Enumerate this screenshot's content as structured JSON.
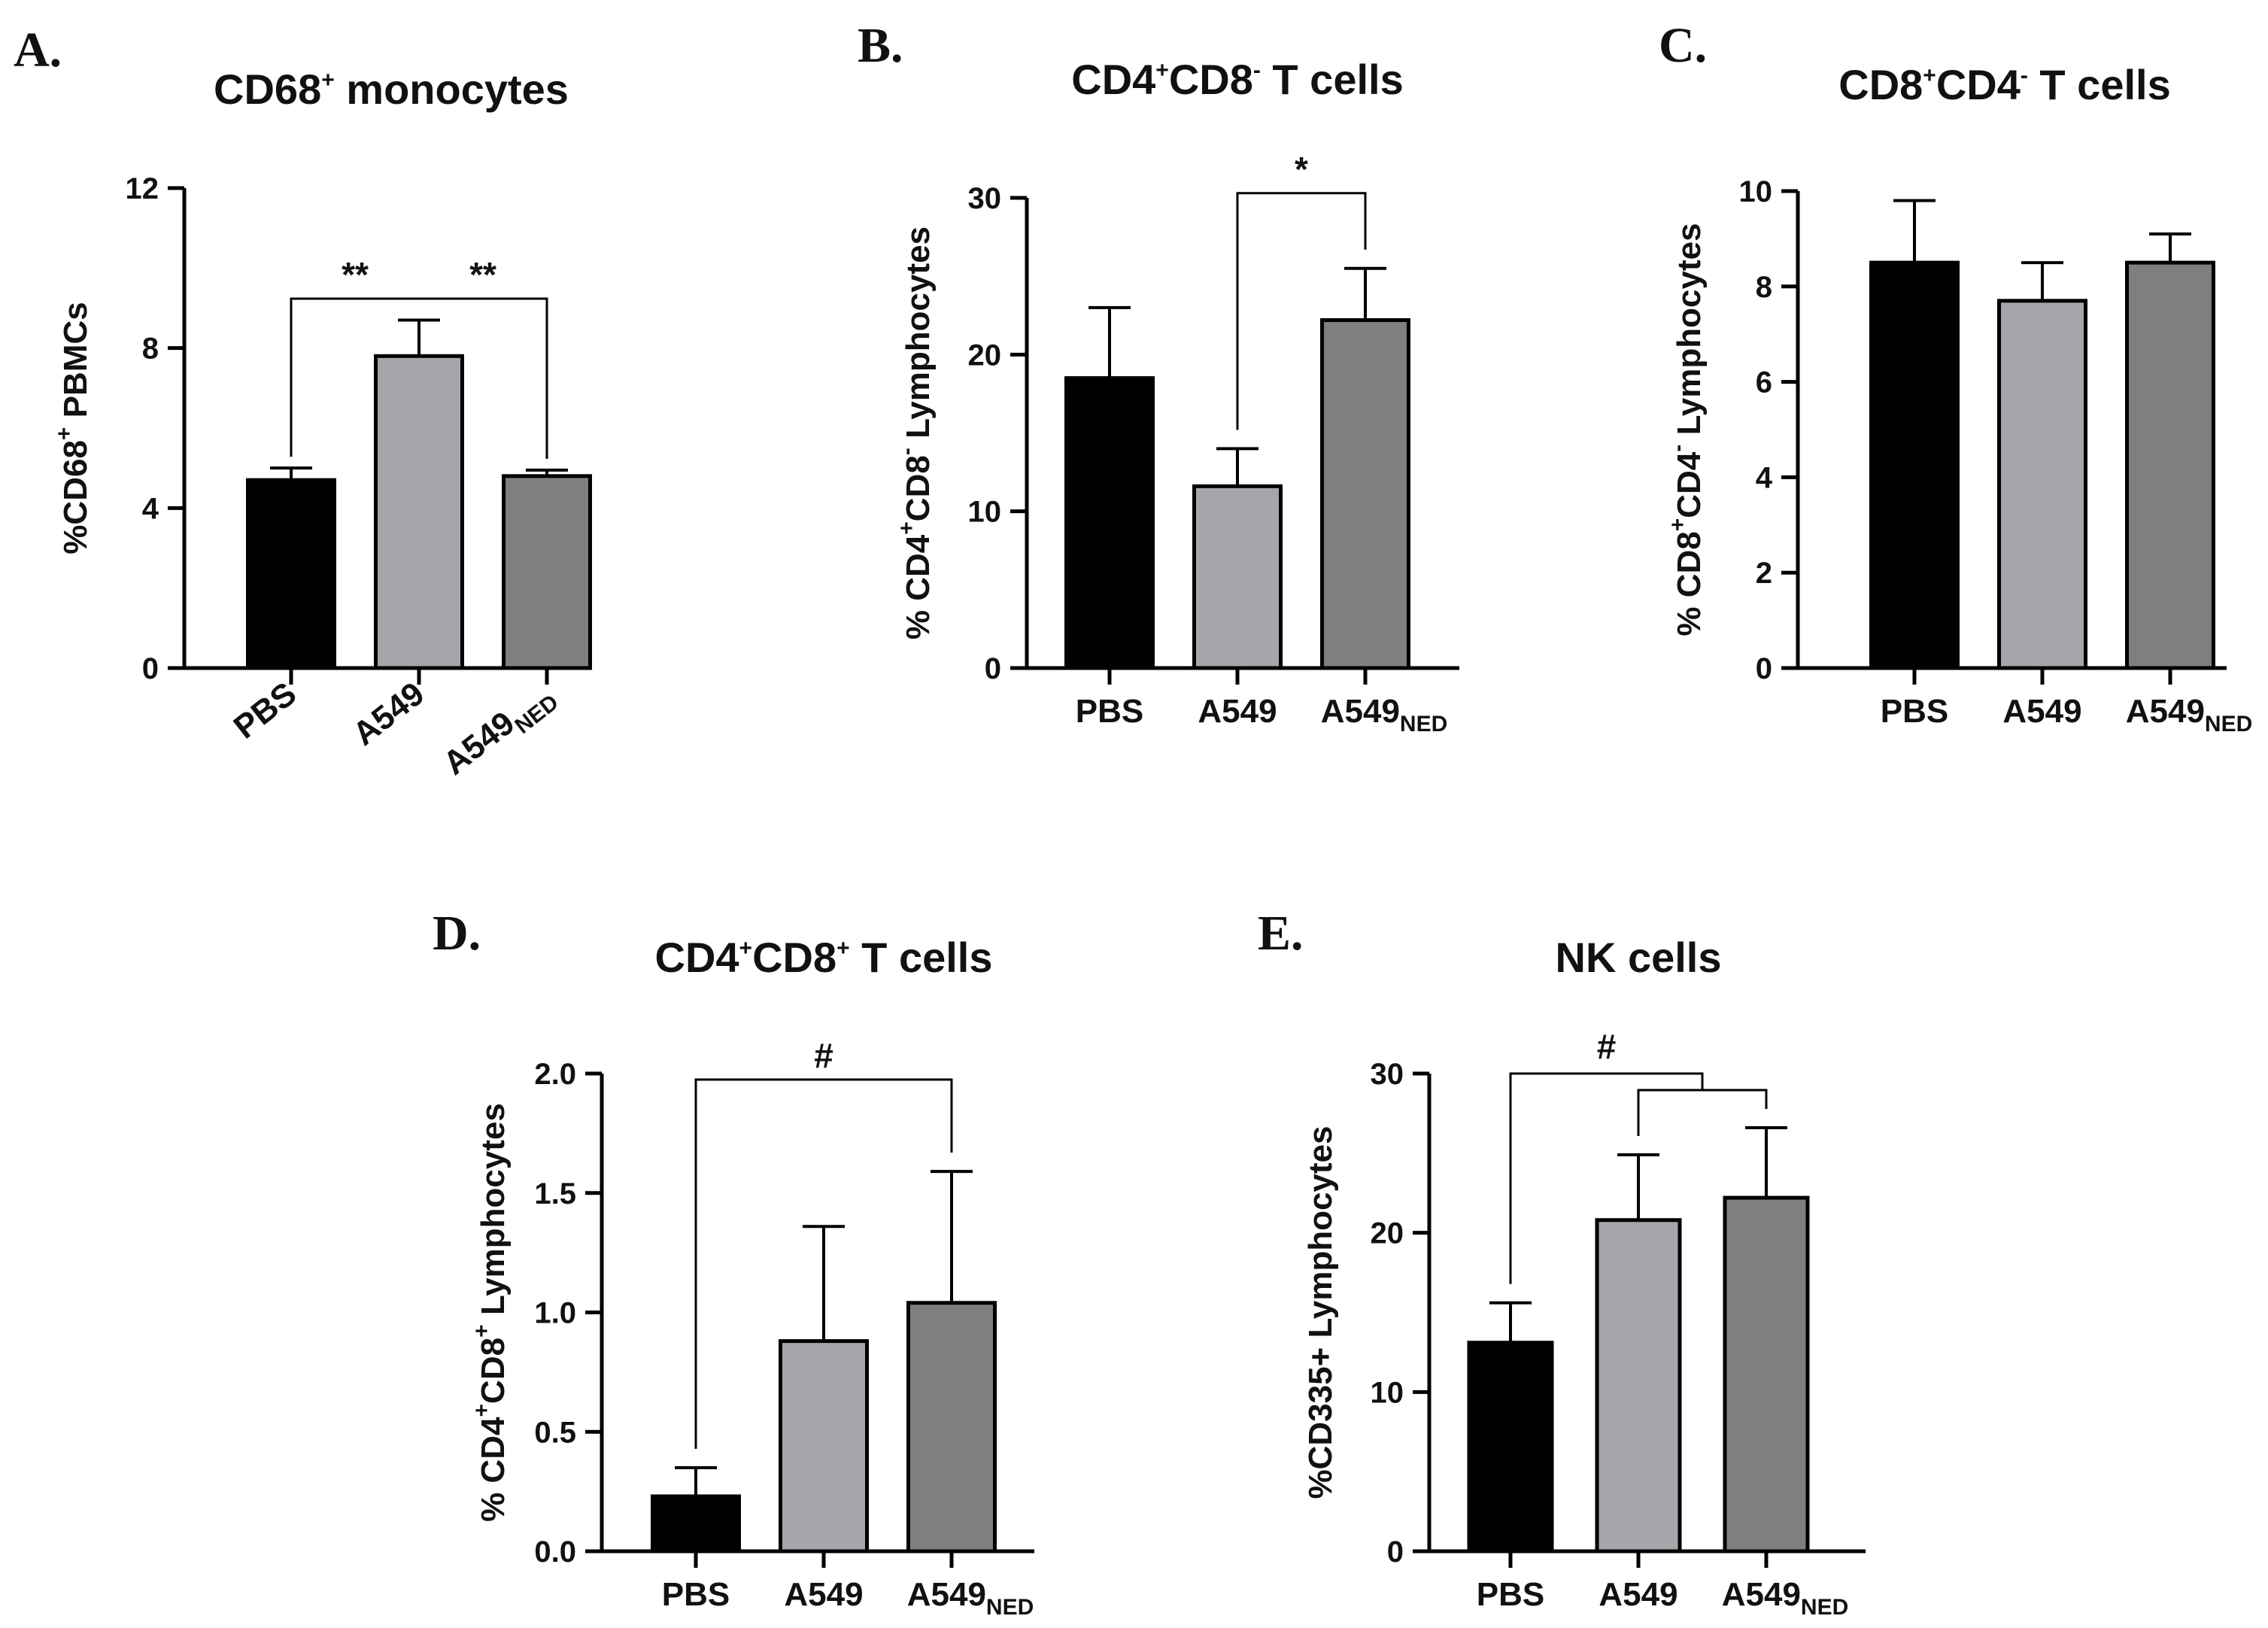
{
  "chart_data": [
    {
      "id": "A",
      "panel_label": "A.",
      "type": "bar",
      "title": {
        "base": "CD68",
        "sup": "+",
        "rest": " monocytes"
      },
      "ylabel": {
        "parts": [
          {
            "t": "%CD68"
          },
          {
            "t": "+",
            "sup": true
          },
          {
            "t": " PBMCs"
          }
        ]
      },
      "ylim": [
        0,
        12
      ],
      "yticks": [
        0,
        4,
        8,
        12
      ],
      "categories": [
        {
          "name": "PBS"
        },
        {
          "name": "A549"
        },
        {
          "name": "A549",
          "sub": "NED"
        }
      ],
      "values": [
        4.7,
        7.8,
        4.8
      ],
      "errors": [
        0.3,
        0.9,
        0.15
      ],
      "colors": [
        "#000000",
        "#a6a6aa",
        "#7f7f7f"
      ],
      "rotated_labels": true,
      "significance": [
        {
          "from": 0,
          "to": 1,
          "label": "**"
        },
        {
          "from": 1,
          "to": 2,
          "label": "**"
        }
      ]
    },
    {
      "id": "B",
      "panel_label": "B.",
      "type": "bar",
      "title": {
        "base": "CD4",
        "sup": "+",
        "mid": "CD8",
        "sup2": "-",
        "rest": " T cells"
      },
      "ylabel": {
        "parts": [
          {
            "t": "% CD4"
          },
          {
            "t": "+",
            "sup": true
          },
          {
            "t": "CD8"
          },
          {
            "t": "-",
            "sup": true
          },
          {
            "t": " Lymphocytes"
          }
        ]
      },
      "ylim": [
        0,
        30
      ],
      "yticks": [
        0,
        10,
        20,
        30
      ],
      "categories": [
        {
          "name": "PBS"
        },
        {
          "name": "A549"
        },
        {
          "name": "A549",
          "sub": "NED"
        }
      ],
      "values": [
        18.5,
        11.6,
        22.2
      ],
      "errors": [
        4.5,
        2.4,
        3.3
      ],
      "colors": [
        "#000000",
        "#a6a6aa",
        "#7f7f7f"
      ],
      "rotated_labels": false,
      "significance": [
        {
          "from": 1,
          "to": 2,
          "label": "*"
        }
      ]
    },
    {
      "id": "C",
      "panel_label": "C.",
      "type": "bar",
      "title": {
        "base": "CD8",
        "sup": "+",
        "mid": "CD4",
        "sup2": "-",
        "rest": " T cells"
      },
      "ylabel": {
        "parts": [
          {
            "t": "% CD8"
          },
          {
            "t": "+",
            "sup": true
          },
          {
            "t": "CD4"
          },
          {
            "t": "-",
            "sup": true
          },
          {
            "t": " Lymphocytes"
          }
        ]
      },
      "ylim": [
        0,
        10
      ],
      "yticks": [
        0,
        2,
        4,
        6,
        8,
        10
      ],
      "categories": [
        {
          "name": "PBS"
        },
        {
          "name": "A549"
        },
        {
          "name": "A549",
          "sub": "NED"
        }
      ],
      "values": [
        8.5,
        7.7,
        8.5
      ],
      "errors": [
        1.3,
        0.8,
        0.6
      ],
      "colors": [
        "#000000",
        "#a6a6aa",
        "#7f7f7f"
      ],
      "rotated_labels": false,
      "significance": []
    },
    {
      "id": "D",
      "panel_label": "D.",
      "type": "bar",
      "title": {
        "base": "CD4",
        "sup": "+",
        "mid": "CD8",
        "sup2": "+",
        "rest": " T cells"
      },
      "ylabel": {
        "parts": [
          {
            "t": "% CD4"
          },
          {
            "t": "+",
            "sup": true
          },
          {
            "t": "CD8"
          },
          {
            "t": "+",
            "sup": true
          },
          {
            "t": " Lymphocytes"
          }
        ]
      },
      "ylim": [
        0,
        2.0
      ],
      "yticks": [
        0.0,
        0.5,
        1.0,
        1.5,
        2.0
      ],
      "ytick_labels": [
        "0.0",
        "0.5",
        "1.0",
        "1.5",
        "2.0"
      ],
      "categories": [
        {
          "name": "PBS"
        },
        {
          "name": "A549"
        },
        {
          "name": "A549",
          "sub": "NED"
        }
      ],
      "values": [
        0.23,
        0.88,
        1.04
      ],
      "errors": [
        0.12,
        0.48,
        0.55
      ],
      "colors": [
        "#000000",
        "#a6a6aa",
        "#7f7f7f"
      ],
      "rotated_labels": false,
      "significance": [
        {
          "from": 0,
          "to": 2,
          "label": "#"
        }
      ]
    },
    {
      "id": "E",
      "panel_label": "E.",
      "type": "bar",
      "title": {
        "base": "NK cells"
      },
      "ylabel": {
        "parts": [
          {
            "t": "%CD335+ Lymphocytes"
          }
        ]
      },
      "ylim": [
        0,
        30
      ],
      "yticks": [
        0,
        10,
        20,
        30
      ],
      "categories": [
        {
          "name": "PBS"
        },
        {
          "name": "A549"
        },
        {
          "name": "A549",
          "sub": "NED"
        }
      ],
      "values": [
        13.1,
        20.8,
        22.2
      ],
      "errors": [
        2.5,
        4.1,
        4.4
      ],
      "colors": [
        "#000000",
        "#a6a6aa",
        "#7f7f7f"
      ],
      "rotated_labels": false,
      "significance": [
        {
          "from": 0,
          "to_group": [
            1,
            2
          ],
          "label": "#"
        }
      ]
    }
  ]
}
